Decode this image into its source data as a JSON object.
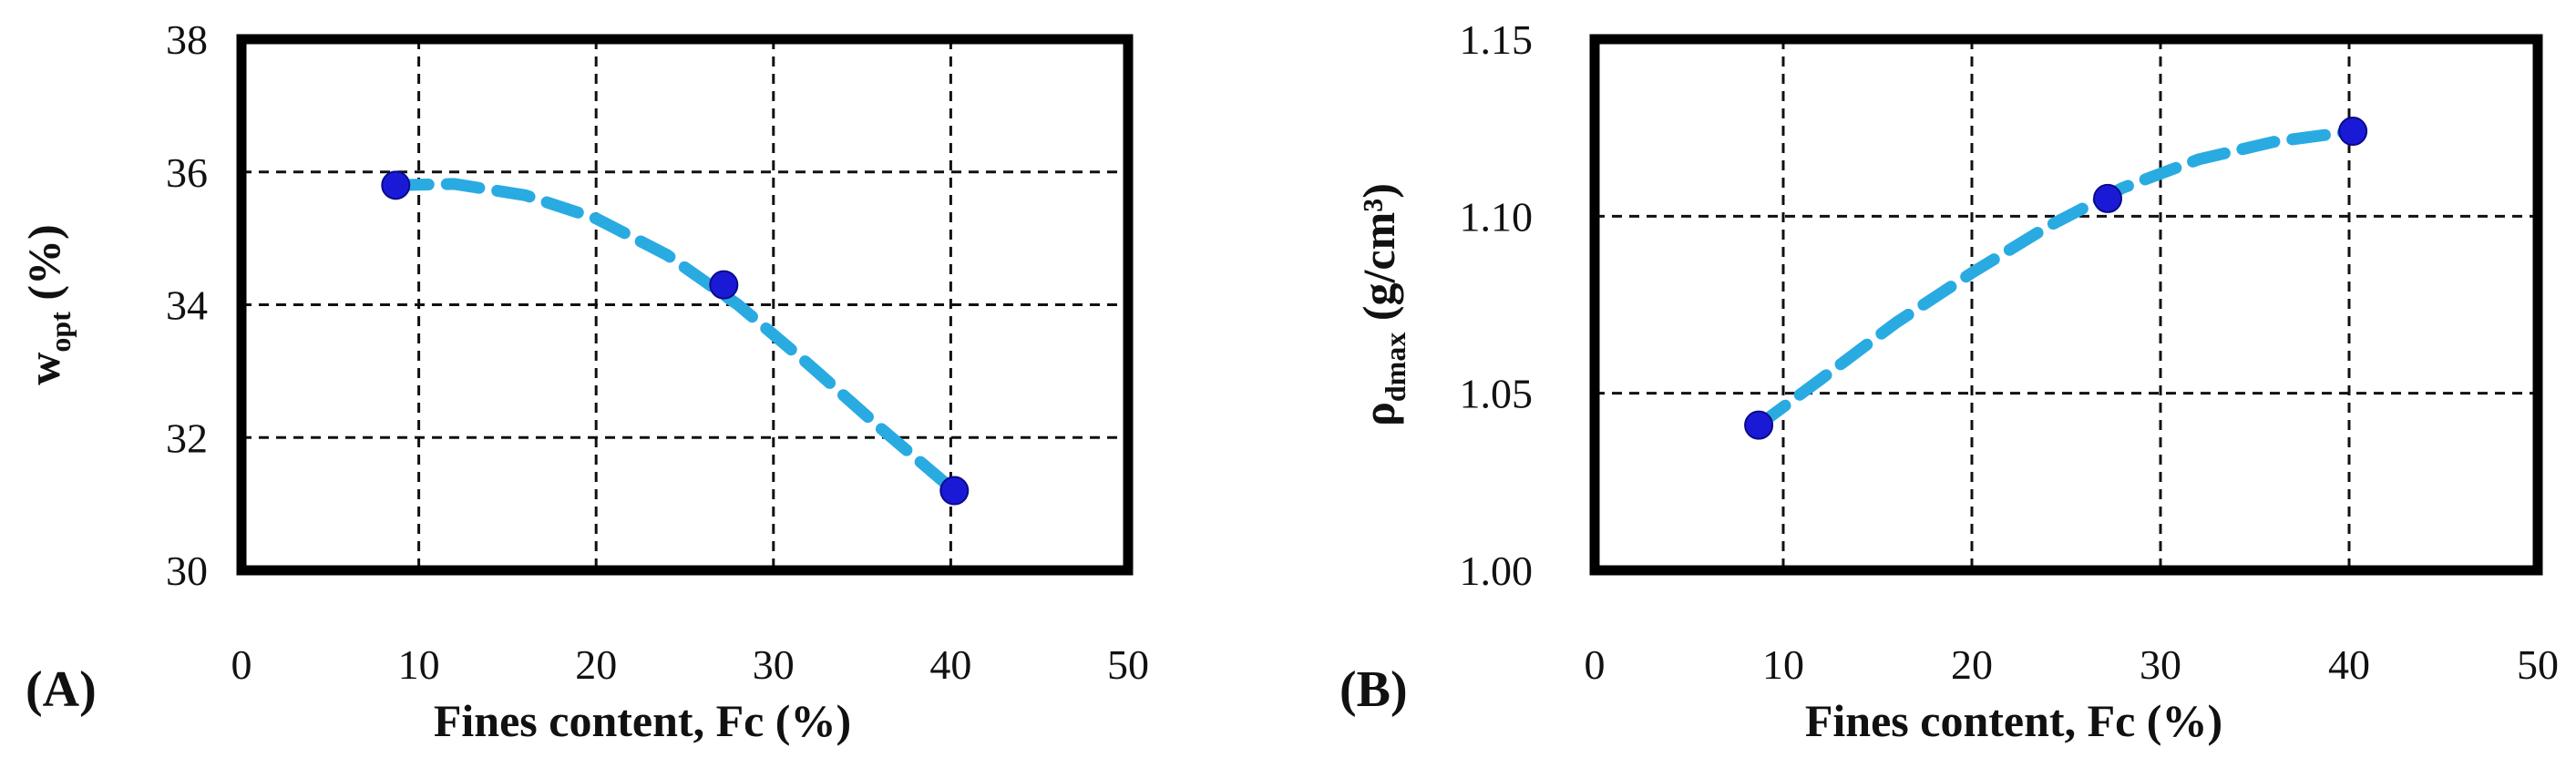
{
  "chart_data": [
    {
      "panel_label": "(A)",
      "type": "scatter",
      "xlabel": "Fines content, Fc (%)",
      "ylabel": {
        "symbol": "w",
        "subscript": "opt",
        "unit": "(%)"
      },
      "xlim": [
        0,
        50
      ],
      "ylim": [
        30,
        38
      ],
      "xticks": [
        "0",
        "10",
        "20",
        "30",
        "40",
        "50"
      ],
      "yticks": [
        "30",
        "32",
        "34",
        "36",
        "38"
      ],
      "grid": true,
      "points": [
        {
          "x": 8.7,
          "y": 35.8
        },
        {
          "x": 27.2,
          "y": 34.3
        },
        {
          "x": 40.2,
          "y": 31.2
        }
      ],
      "trendline": {
        "style": "dashed",
        "color": "#29ABE2",
        "x": [
          8.7,
          12,
          16,
          20,
          24,
          28,
          32,
          36,
          40.2
        ],
        "y": [
          35.8,
          35.82,
          35.65,
          35.3,
          34.75,
          34.0,
          33.1,
          32.15,
          31.2
        ]
      },
      "marker_color": "#1a1ad6"
    },
    {
      "panel_label": "(B)",
      "type": "scatter",
      "xlabel": "Fines content, Fc (%)",
      "ylabel": {
        "symbol": "ρ",
        "subscript": "dmax",
        "unit": "(g/cm³)"
      },
      "xlim": [
        0,
        50
      ],
      "ylim": [
        1.0,
        1.15
      ],
      "xticks": [
        "0",
        "10",
        "20",
        "30",
        "40",
        "50"
      ],
      "yticks": [
        "1.00",
        "1.05",
        "1.10",
        "1.15"
      ],
      "grid": true,
      "points": [
        {
          "x": 8.7,
          "y": 1.041
        },
        {
          "x": 27.2,
          "y": 1.105
        },
        {
          "x": 40.2,
          "y": 1.124
        }
      ],
      "trendline": {
        "style": "dashed",
        "color": "#29ABE2",
        "x": [
          8.7,
          12,
          16,
          20,
          24,
          28,
          32,
          36,
          40.2
        ],
        "y": [
          1.041,
          1.054,
          1.07,
          1.084,
          1.097,
          1.108,
          1.116,
          1.121,
          1.124
        ]
      },
      "marker_color": "#1a1ad6"
    }
  ]
}
